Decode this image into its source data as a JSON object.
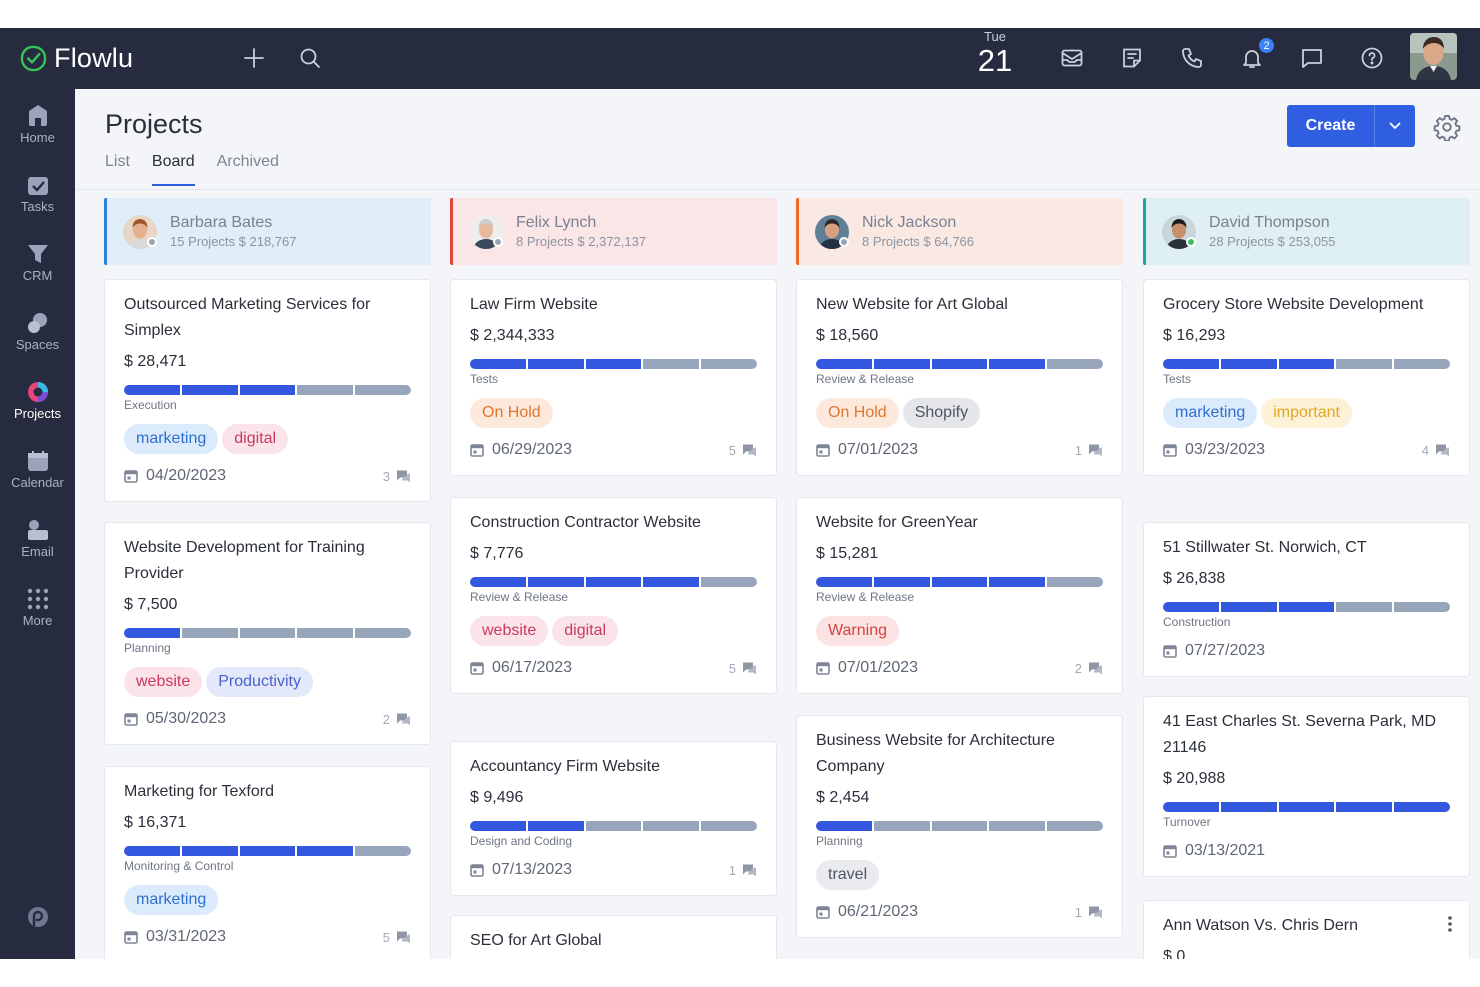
{
  "app": {
    "name": "Flowlu"
  },
  "topbar": {
    "date": {
      "dow": "Tue",
      "day": "21"
    },
    "notification_count": "2",
    "icons": [
      "plus-icon",
      "search-icon",
      "mail-icon",
      "notes-icon",
      "phone-icon",
      "bell-icon",
      "chat-icon",
      "help-icon"
    ]
  },
  "sidebar": {
    "items": [
      {
        "label": "Home",
        "icon": "home-icon"
      },
      {
        "label": "Tasks",
        "icon": "tasks-icon"
      },
      {
        "label": "CRM",
        "icon": "crm-icon"
      },
      {
        "label": "Spaces",
        "icon": "spaces-icon"
      },
      {
        "label": "Projects",
        "icon": "projects-icon",
        "active": true
      },
      {
        "label": "Calendar",
        "icon": "calendar-icon"
      },
      {
        "label": "Email",
        "icon": "email-icon"
      },
      {
        "label": "More",
        "icon": "more-icon"
      }
    ]
  },
  "page": {
    "title": "Projects",
    "tabs": [
      "List",
      "Board",
      "Archived"
    ],
    "active_tab": "Board",
    "create_label": "Create"
  },
  "colors": {
    "accent": "#2f5fe0",
    "progress_done": "#3358df",
    "progress_todo": "#98a6bc",
    "topbar": "#262b3f"
  },
  "columns": [
    {
      "name": "Barbara Bates",
      "meta": "15 Projects $ 218,767",
      "head_bg": "#dfeef8",
      "border": "#2f7fd6",
      "cards": [
        {
          "title": "Outsourced Marketing Services for Simplex",
          "amount": "$ 28,471",
          "progress": 3,
          "stage": "Execution",
          "tags": [
            {
              "text": "marketing",
              "bg": "#dcebfb",
              "fg": "#2e6fcf"
            },
            {
              "text": "digital",
              "bg": "#fbe3ea",
              "fg": "#c93a62"
            }
          ],
          "date": "04/20/2023",
          "comments": "3"
        },
        {
          "title": "Website Development for Training Provider",
          "amount": "$ 7,500",
          "progress": 1,
          "stage": "Planning",
          "tags": [
            {
              "text": "website",
              "bg": "#fbe3ea",
              "fg": "#c93a62"
            },
            {
              "text": "Productivity",
              "bg": "#e4e8fb",
              "fg": "#4a63c9"
            }
          ],
          "date": "05/30/2023",
          "comments": "2"
        },
        {
          "title": "Marketing for Texford",
          "amount": "$ 16,371",
          "progress": 4,
          "stage": "Monitoring & Control",
          "tags": [
            {
              "text": "marketing",
              "bg": "#dcebfb",
              "fg": "#2e6fcf"
            }
          ],
          "date": "03/31/2023",
          "comments": "5"
        }
      ]
    },
    {
      "name": "Felix Lynch",
      "meta": "8 Projects $ 2,372,137",
      "head_bg": "#fae5e7",
      "border": "#e0453a",
      "cards": [
        {
          "title": "Law Firm Website",
          "amount": "$ 2,344,333",
          "progress": 3,
          "stage": "Tests",
          "tags": [
            {
              "text": "On Hold",
              "bg": "#fde9dc",
              "fg": "#e0762e"
            }
          ],
          "date": "06/29/2023",
          "comments": "5"
        },
        {
          "title": "Construction Contractor Website",
          "amount": "$ 7,776",
          "progress": 4,
          "stage": "Review & Release",
          "tags": [
            {
              "text": "website",
              "bg": "#fbe3ea",
              "fg": "#c93a62"
            },
            {
              "text": "digital",
              "bg": "#fbe3ea",
              "fg": "#c93a62"
            }
          ],
          "date": "06/17/2023",
          "comments": "5"
        },
        {
          "title": "Accountancy Firm Website",
          "amount": "$ 9,496",
          "progress": 2,
          "stage": "Design and Coding",
          "tags": [],
          "date": "07/13/2023",
          "comments": "1"
        },
        {
          "title": "SEO for Art Global"
        }
      ]
    },
    {
      "name": "Nick Jackson",
      "meta": "8 Projects $ 64,766",
      "head_bg": "#fae8e3",
      "border": "#ea6a2c",
      "cards": [
        {
          "title": "New Website for Art Global",
          "amount": "$ 18,560",
          "progress": 4,
          "stage": "Review & Release",
          "tags": [
            {
              "text": "On Hold",
              "bg": "#fde9dc",
              "fg": "#e0762e"
            },
            {
              "text": "Shopify",
              "bg": "#e4e6ea",
              "fg": "#4f5563"
            }
          ],
          "date": "07/01/2023",
          "comments": "1"
        },
        {
          "title": "Website for GreenYear",
          "amount": "$ 15,281",
          "progress": 4,
          "stage": "Review & Release",
          "tags": [
            {
              "text": "Warning",
              "bg": "#fbe3e3",
              "fg": "#d9413d"
            }
          ],
          "date": "07/01/2023",
          "comments": "2"
        },
        {
          "title": "Business Website for Architecture Company",
          "amount": "$ 2,454",
          "progress": 1,
          "stage": "Planning",
          "tags": [
            {
              "text": "travel",
              "bg": "#e9ebee",
              "fg": "#4f5563"
            }
          ],
          "date": "06/21/2023",
          "comments": "1"
        }
      ]
    },
    {
      "name": "David Thompson",
      "meta": "28 Projects $ 253,055",
      "head_bg": "#dff0f3",
      "border": "#1fa39b",
      "cards": [
        {
          "title": "Grocery Store Website Development",
          "amount": "$ 16,293",
          "progress": 3,
          "stage": "Tests",
          "tags": [
            {
              "text": "marketing",
              "bg": "#dcebfb",
              "fg": "#2e6fcf"
            },
            {
              "text": "important",
              "bg": "#fdf2d8",
              "fg": "#e0a722"
            }
          ],
          "date": "03/23/2023",
          "comments": "4"
        },
        {
          "title": "51 Stillwater St. Norwich, CT",
          "amount": "$ 26,838",
          "progress": 3,
          "stage": "Construction",
          "tags": [],
          "date": "07/27/2023",
          "comments": ""
        },
        {
          "title": "41 East Charles St. Severna Park, MD 21146",
          "amount": "$ 20,988",
          "progress": 5,
          "stage": "Turnover",
          "tags": [],
          "date": "03/13/2021",
          "comments": ""
        },
        {
          "title": "Ann Watson Vs. Chris Dern",
          "amount": "$ 0"
        }
      ]
    }
  ]
}
